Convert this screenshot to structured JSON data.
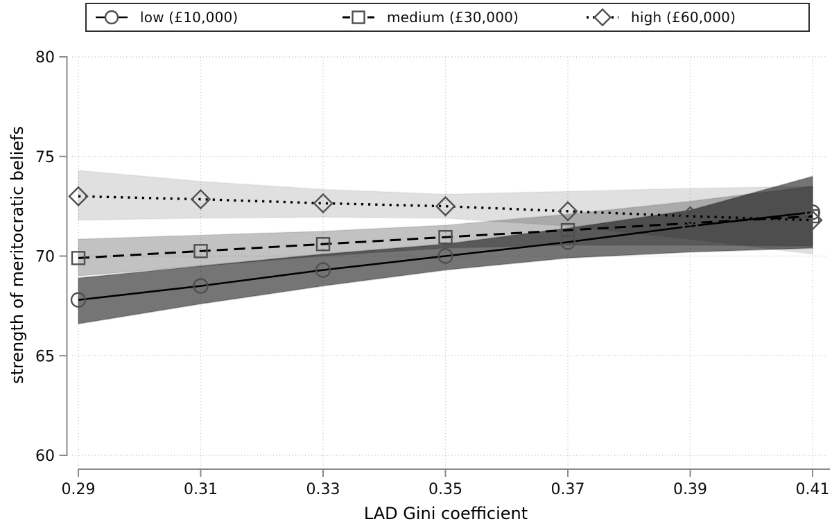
{
  "figure": {
    "background": "#ffffff",
    "xlabel": "LAD Gini coefficient",
    "ylabel": "strength of meritocratic beliefs"
  },
  "chart_data": {
    "type": "line",
    "title": "",
    "xlabel": "LAD Gini coefficient",
    "ylabel": "strength of meritocratic beliefs",
    "x": [
      0.29,
      0.31,
      0.33,
      0.35,
      0.37,
      0.39,
      0.41
    ],
    "xtick_labels": [
      "0.29",
      "0.31",
      "0.33",
      "0.35",
      "0.37",
      "0.39",
      "0.41"
    ],
    "yticks": [
      60,
      65,
      70,
      75,
      80
    ],
    "ytick_labels": [
      "60",
      "65",
      "70",
      "75",
      "80"
    ],
    "xlim": [
      0.29,
      0.41
    ],
    "ylim": [
      60,
      80
    ],
    "grid": true,
    "grid_style": "dotted",
    "legend_position": "top",
    "series": [
      {
        "name": "low (£10,000)",
        "marker": "circle",
        "line_style": "solid",
        "values": [
          67.8,
          68.5,
          69.3,
          70.0,
          70.7,
          71.5,
          72.2
        ],
        "ci_low": [
          66.6,
          67.6,
          68.5,
          69.3,
          69.9,
          70.2,
          70.4
        ],
        "ci_high": [
          68.9,
          69.5,
          70.1,
          70.6,
          71.4,
          72.3,
          74.0
        ],
        "band_opacity": 0.54
      },
      {
        "name": "medium (£30,000)",
        "marker": "square",
        "line_style": "dashed",
        "values": [
          69.9,
          70.25,
          70.6,
          70.95,
          71.3,
          71.65,
          72.0
        ],
        "ci_low": [
          69.0,
          69.5,
          70.0,
          70.4,
          70.55,
          70.55,
          70.5
        ],
        "ci_high": [
          70.85,
          71.05,
          71.25,
          71.55,
          72.1,
          72.75,
          73.5
        ],
        "band_opacity": 0.24
      },
      {
        "name": "high (£60,000)",
        "marker": "diamond",
        "line_style": "dotted",
        "values": [
          73.0,
          72.85,
          72.65,
          72.5,
          72.25,
          72.0,
          71.8
        ],
        "ci_low": [
          71.8,
          71.9,
          71.95,
          71.9,
          71.5,
          70.85,
          70.1
        ],
        "ci_high": [
          74.3,
          73.75,
          73.35,
          73.1,
          73.25,
          73.4,
          73.5
        ],
        "band_opacity": 0.12
      }
    ],
    "colors": {
      "line": "#000000",
      "marker_stroke": "#4f4f4f",
      "band_fill": "#000000",
      "grid": "#c9c9c9",
      "axis": "#8a8a8a",
      "text": "#0c0c0c",
      "legend_border": "#2e2e2e"
    }
  }
}
